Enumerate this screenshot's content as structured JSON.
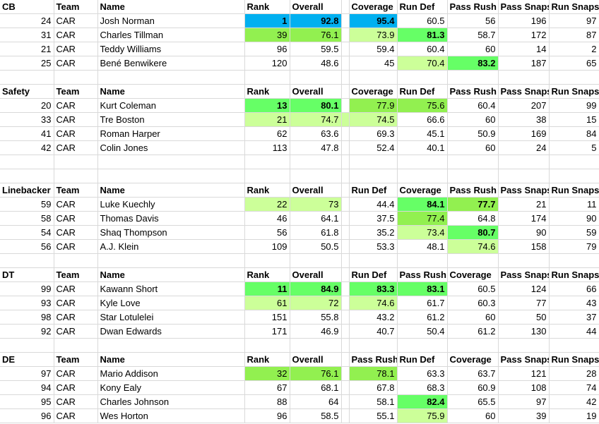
{
  "colors": {
    "blue": "#00b0f0",
    "green_strong": "#66ff66",
    "green_mid": "#92f050",
    "green_light": "#ccff99"
  },
  "sections": [
    {
      "position": "CB",
      "headers": [
        "Team",
        "Name",
        "Rank",
        "Overall",
        "",
        "Coverage",
        "Run Def",
        "Pass Rush",
        "Pass Snaps",
        "Run Snaps"
      ],
      "rows": [
        {
          "num": "24",
          "team": "CAR",
          "name": "Josh Norman",
          "c": [
            "1",
            "92.8",
            "",
            "95.4",
            "60.5",
            "56",
            "196",
            "97"
          ]
        },
        {
          "num": "31",
          "team": "CAR",
          "name": "Charles Tillman",
          "c": [
            "39",
            "76.1",
            "",
            "73.9",
            "81.3",
            "58.7",
            "172",
            "87"
          ]
        },
        {
          "num": "21",
          "team": "CAR",
          "name": "Teddy Williams",
          "c": [
            "96",
            "59.5",
            "",
            "59.4",
            "60.4",
            "60",
            "14",
            "2"
          ]
        },
        {
          "num": "25",
          "team": "CAR",
          "name": "Bené Benwikere",
          "c": [
            "120",
            "48.6",
            "",
            "45",
            "70.4",
            "83.2",
            "187",
            "65"
          ]
        }
      ]
    },
    {
      "position": "Safety",
      "headers": [
        "Team",
        "Name",
        "Rank",
        "Overall",
        "",
        "Coverage",
        "Run Def",
        "Pass Rush",
        "Pass Snaps",
        "Run Snaps"
      ],
      "rows": [
        {
          "num": "20",
          "team": "CAR",
          "name": "Kurt Coleman",
          "c": [
            "13",
            "80.1",
            "",
            "77.9",
            "75.6",
            "60.4",
            "207",
            "99"
          ]
        },
        {
          "num": "33",
          "team": "CAR",
          "name": "Tre Boston",
          "c": [
            "21",
            "74.7",
            "",
            "74.5",
            "66.6",
            "60",
            "38",
            "15"
          ]
        },
        {
          "num": "41",
          "team": "CAR",
          "name": "Roman Harper",
          "c": [
            "62",
            "63.6",
            "",
            "69.3",
            "45.1",
            "50.9",
            "169",
            "84"
          ]
        },
        {
          "num": "42",
          "team": "CAR",
          "name": "Colin Jones",
          "c": [
            "113",
            "47.8",
            "",
            "52.4",
            "40.1",
            "60",
            "24",
            "5"
          ]
        }
      ]
    },
    {
      "position": "Linebacker",
      "headers": [
        "Team",
        "Name",
        "Rank",
        "Overall",
        "",
        "Run Def",
        "Coverage",
        "Pass Rush",
        "Pass Snaps",
        "Run Snaps"
      ],
      "rows": [
        {
          "num": "59",
          "team": "CAR",
          "name": "Luke Kuechly",
          "c": [
            "22",
            "73",
            "",
            "44.4",
            "84.1",
            "77.7",
            "21",
            "11"
          ]
        },
        {
          "num": "58",
          "team": "CAR",
          "name": "Thomas Davis",
          "c": [
            "46",
            "64.1",
            "",
            "37.5",
            "77.4",
            "64.8",
            "174",
            "90"
          ]
        },
        {
          "num": "54",
          "team": "CAR",
          "name": "Shaq Thompson",
          "c": [
            "56",
            "61.8",
            "",
            "35.2",
            "73.4",
            "80.7",
            "90",
            "59"
          ]
        },
        {
          "num": "56",
          "team": "CAR",
          "name": "A.J. Klein",
          "c": [
            "109",
            "50.5",
            "",
            "53.3",
            "48.1",
            "74.6",
            "158",
            "79"
          ]
        }
      ]
    },
    {
      "position": "DT",
      "headers": [
        "Team",
        "Name",
        "Rank",
        "Overall",
        "",
        "Run Def",
        "Pass Rush",
        "Coverage",
        "Pass Snaps",
        "Run Snaps"
      ],
      "rows": [
        {
          "num": "99",
          "team": "CAR",
          "name": "Kawann Short",
          "c": [
            "11",
            "84.9",
            "",
            "83.3",
            "83.1",
            "60.5",
            "124",
            "66"
          ]
        },
        {
          "num": "93",
          "team": "CAR",
          "name": "Kyle Love",
          "c": [
            "61",
            "72",
            "",
            "74.6",
            "61.7",
            "60.3",
            "77",
            "43"
          ]
        },
        {
          "num": "98",
          "team": "CAR",
          "name": "Star Lotulelei",
          "c": [
            "151",
            "55.8",
            "",
            "43.2",
            "61.2",
            "60",
            "50",
            "37"
          ]
        },
        {
          "num": "92",
          "team": "CAR",
          "name": "Dwan Edwards",
          "c": [
            "171",
            "46.9",
            "",
            "40.7",
            "50.4",
            "61.2",
            "130",
            "44"
          ]
        }
      ]
    },
    {
      "position": "DE",
      "headers": [
        "Team",
        "Name",
        "Rank",
        "Overall",
        "",
        "Pass Rush",
        "Run Def",
        "Coverage",
        "Pass Snaps",
        "Run Snaps"
      ],
      "rows": [
        {
          "num": "97",
          "team": "CAR",
          "name": "Mario Addison",
          "c": [
            "32",
            "76.1",
            "",
            "78.1",
            "63.3",
            "63.7",
            "121",
            "28"
          ]
        },
        {
          "num": "94",
          "team": "CAR",
          "name": "Kony Ealy",
          "c": [
            "67",
            "68.1",
            "",
            "67.8",
            "68.3",
            "60.9",
            "108",
            "74"
          ]
        },
        {
          "num": "95",
          "team": "CAR",
          "name": "Charles Johnson",
          "c": [
            "88",
            "64",
            "",
            "58.1",
            "82.4",
            "65.5",
            "97",
            "42"
          ]
        },
        {
          "num": "96",
          "team": "CAR",
          "name": "Wes Horton",
          "c": [
            "96",
            "58.5",
            "",
            "55.1",
            "75.9",
            "60",
            "39",
            "19"
          ]
        }
      ]
    }
  ]
}
